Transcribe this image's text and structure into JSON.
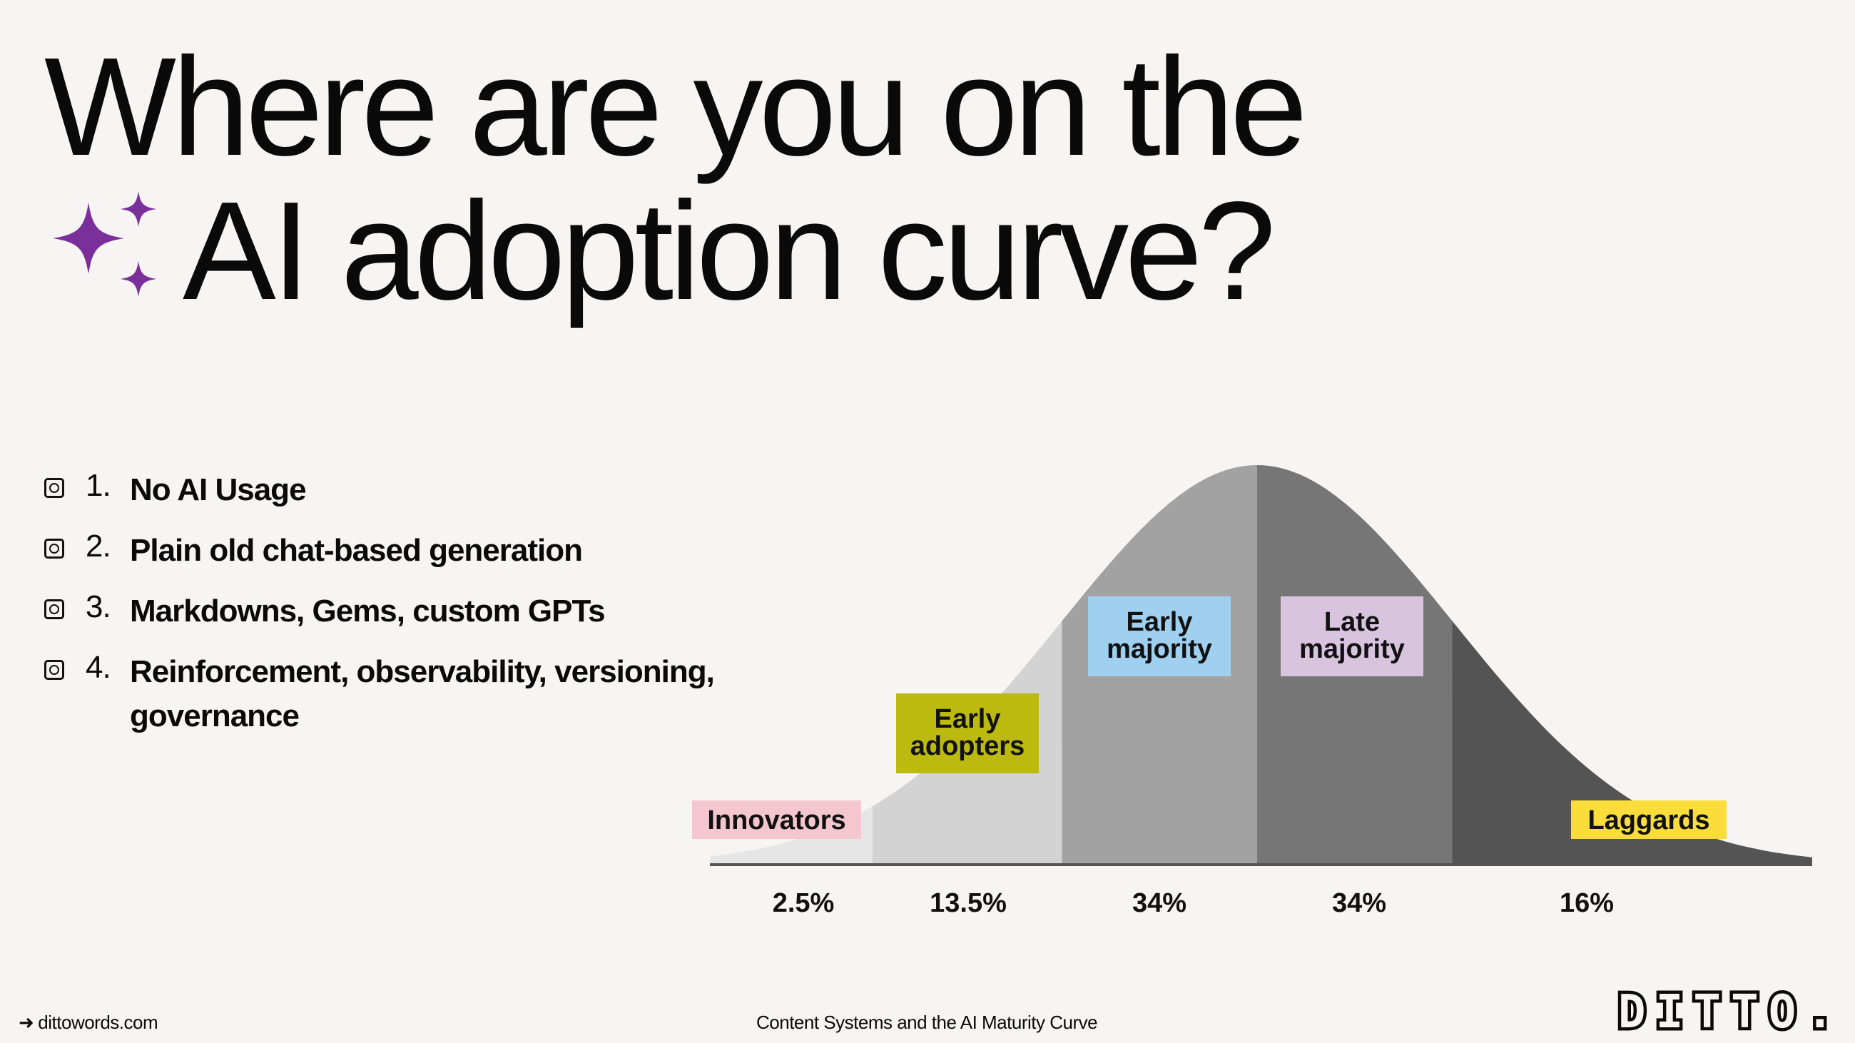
{
  "title": {
    "line1": "Where are you on the",
    "line2": "AI adoption curve?"
  },
  "icons": {
    "title_icon": "sparkles-icon",
    "list_bullet": "checkbox-icon",
    "footer_arrow": "arrow-right-icon"
  },
  "agenda": [
    {
      "num": "1.",
      "text": "No AI Usage"
    },
    {
      "num": "2.",
      "text": "Plain old chat-based generation"
    },
    {
      "num": "3.",
      "text": "Markdowns, Gems, custom GPTs"
    },
    {
      "num": "4.",
      "text": "Reinforcement, observability, versioning, governance"
    }
  ],
  "chart_data": {
    "type": "area",
    "subtype": "diffusion-of-innovation bell curve",
    "categories": [
      "Innovators",
      "Early adopters",
      "Early majority",
      "Late majority",
      "Laggards"
    ],
    "values": [
      2.5,
      13.5,
      34,
      34,
      16
    ],
    "value_labels": [
      "2.5%",
      "13.5%",
      "34%",
      "34%",
      "16%"
    ],
    "segment_colors": [
      "#e6e6e6",
      "#d3d3d3",
      "#a2a2a2",
      "#767676",
      "#545454"
    ],
    "label_colors": [
      "#f4c6d0",
      "#bcb90f",
      "#9fd0f0",
      "#d9c4e0",
      "#fadc3a"
    ],
    "grid": false,
    "legend": "none"
  },
  "footer": {
    "link": "dittowords.com",
    "center": "Content Systems and the AI Maturity Curve",
    "logo": "DITTO."
  },
  "colors": {
    "accent": "#7b2f9a",
    "background": "#f6f5f3",
    "text": "#0a0a0a"
  }
}
